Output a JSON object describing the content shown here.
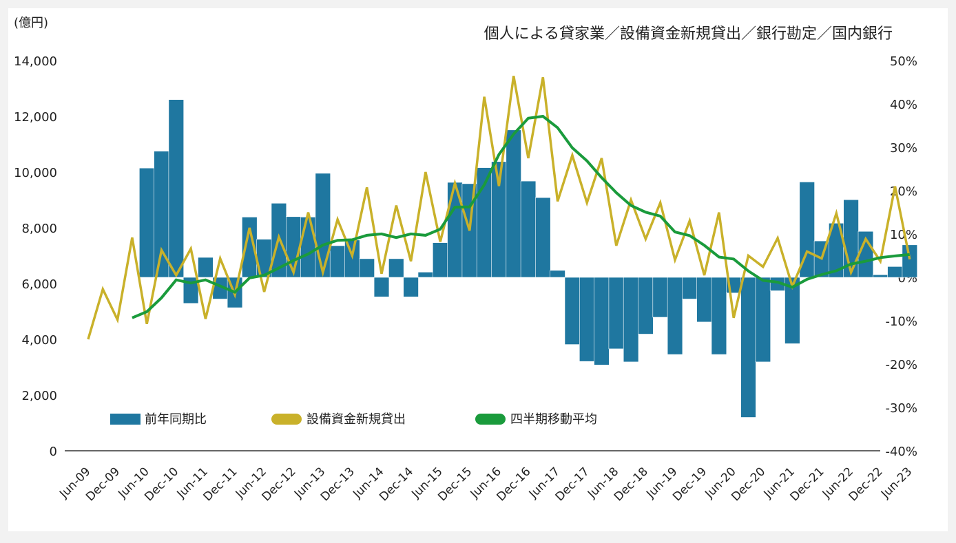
{
  "chart_data": {
    "type": "bar+line",
    "title": "個人による貸家業／設備資金新規貸出／銀行勘定／国内銀行",
    "left_axis": {
      "unit_label": "(億円)",
      "range": [
        0,
        14000
      ],
      "ticks": [
        "0",
        "2,000",
        "4,000",
        "6,000",
        "8,000",
        "10,000",
        "12,000",
        "14,000"
      ],
      "tick_values": [
        0,
        2000,
        4000,
        6000,
        8000,
        10000,
        12000,
        14000
      ]
    },
    "right_axis": {
      "range": [
        -40,
        50
      ],
      "ticks": [
        "-40%",
        "-30%",
        "-20%",
        "-10%",
        "0%",
        "10%",
        "20%",
        "30%",
        "40%",
        "50%"
      ],
      "tick_values": [
        -40,
        -30,
        -20,
        -10,
        0,
        10,
        20,
        30,
        40,
        50
      ]
    },
    "x_tick_labels": [
      "Jun-09",
      "Dec-09",
      "Jun-10",
      "Dec-10",
      "Jun-11",
      "Dec-11",
      "Jun-12",
      "Dec-12",
      "Jun-13",
      "Dec-13",
      "Jun-14",
      "Dec-14",
      "Jun-15",
      "Dec-15",
      "Jun-16",
      "Dec-16",
      "Jun-17",
      "Dec-17",
      "Jun-18",
      "Dec-18",
      "Jun-19",
      "Dec-19",
      "Jun-20",
      "Dec-20",
      "Jun-21",
      "Dec-21",
      "Jun-22",
      "Dec-22",
      "Jun-23"
    ],
    "periods": [
      "Jun-09",
      "Sep-09",
      "Dec-09",
      "Mar-10",
      "Jun-10",
      "Sep-10",
      "Dec-10",
      "Mar-11",
      "Jun-11",
      "Sep-11",
      "Dec-11",
      "Mar-12",
      "Jun-12",
      "Sep-12",
      "Dec-12",
      "Mar-13",
      "Jun-13",
      "Sep-13",
      "Dec-13",
      "Mar-14",
      "Jun-14",
      "Sep-14",
      "Dec-14",
      "Mar-15",
      "Jun-15",
      "Sep-15",
      "Dec-15",
      "Mar-16",
      "Jun-16",
      "Sep-16",
      "Dec-16",
      "Mar-17",
      "Jun-17",
      "Sep-17",
      "Dec-17",
      "Mar-18",
      "Jun-18",
      "Sep-18",
      "Dec-18",
      "Mar-19",
      "Jun-19",
      "Sep-19",
      "Dec-19",
      "Mar-20",
      "Jun-20",
      "Sep-20",
      "Dec-20",
      "Mar-21",
      "Jun-21",
      "Sep-21",
      "Dec-21",
      "Mar-22",
      "Jun-22",
      "Sep-22",
      "Dec-22",
      "Mar-23",
      "Jun-23"
    ],
    "series": [
      {
        "name": "前年同期比",
        "type": "bar",
        "axis": "right",
        "unit": "%",
        "color": "#1f77a0",
        "values": [
          null,
          null,
          null,
          null,
          25.2,
          29.1,
          41.0,
          -6.0,
          4.6,
          -5.0,
          -7.0,
          13.9,
          8.8,
          17.1,
          14.0,
          13.9,
          24.0,
          7.3,
          8.6,
          4.3,
          -4.5,
          4.3,
          -4.5,
          1.2,
          8.0,
          21.9,
          21.6,
          25.3,
          26.7,
          34.0,
          22.2,
          18.4,
          1.6,
          -15.5,
          -19.4,
          -20.2,
          -16.5,
          -19.5,
          -13.1,
          -9.2,
          -17.8,
          -5.0,
          -10.3,
          -17.8,
          -3.6,
          -32.3,
          -19.5,
          -3.1,
          -15.3,
          22.0,
          8.4,
          12.5,
          17.9,
          10.6,
          0.6,
          2.5,
          7.5
        ]
      },
      {
        "name": "設備資金新規貸出",
        "type": "line",
        "axis": "left",
        "unit": "億円",
        "color": "#c9b12a",
        "values": [
          4000,
          5800,
          4700,
          7650,
          4550,
          7200,
          6300,
          7250,
          4730,
          6900,
          5600,
          8000,
          5700,
          7670,
          6400,
          8550,
          6400,
          8300,
          7000,
          9450,
          6350,
          8800,
          6800,
          10000,
          7500,
          9600,
          7900,
          12700,
          9500,
          13450,
          10500,
          13400,
          8950,
          10600,
          8900,
          10500,
          7360,
          9000,
          7600,
          8900,
          6850,
          8250,
          6300,
          8550,
          4770,
          7000,
          6600,
          7630,
          5900,
          7150,
          6900,
          8520,
          6400,
          7600,
          6800,
          9490,
          6870
        ]
      },
      {
        "name": "四半期移動平均",
        "type": "line",
        "axis": "left",
        "unit": "億円",
        "color": "#1a9b3c",
        "values": [
          null,
          null,
          null,
          4770,
          4990,
          5490,
          6130,
          6020,
          6130,
          5910,
          5690,
          6200,
          6300,
          6560,
          6830,
          7060,
          7380,
          7550,
          7570,
          7730,
          7780,
          7650,
          7780,
          7730,
          7950,
          8740,
          8750,
          9540,
          10630,
          11360,
          11930,
          12000,
          11590,
          10870,
          10400,
          9800,
          9260,
          8800,
          8560,
          8420,
          7850,
          7720,
          7370,
          6950,
          6880,
          6450,
          6110,
          6050,
          5870,
          6150,
          6320,
          6460,
          6700,
          6800,
          6930,
          6990,
          7040
        ]
      }
    ],
    "legend": {
      "placement": "bottom-left",
      "items": [
        "前年同期比",
        "設備資金新規貸出",
        "四半期移動平均"
      ]
    },
    "grid": false
  }
}
